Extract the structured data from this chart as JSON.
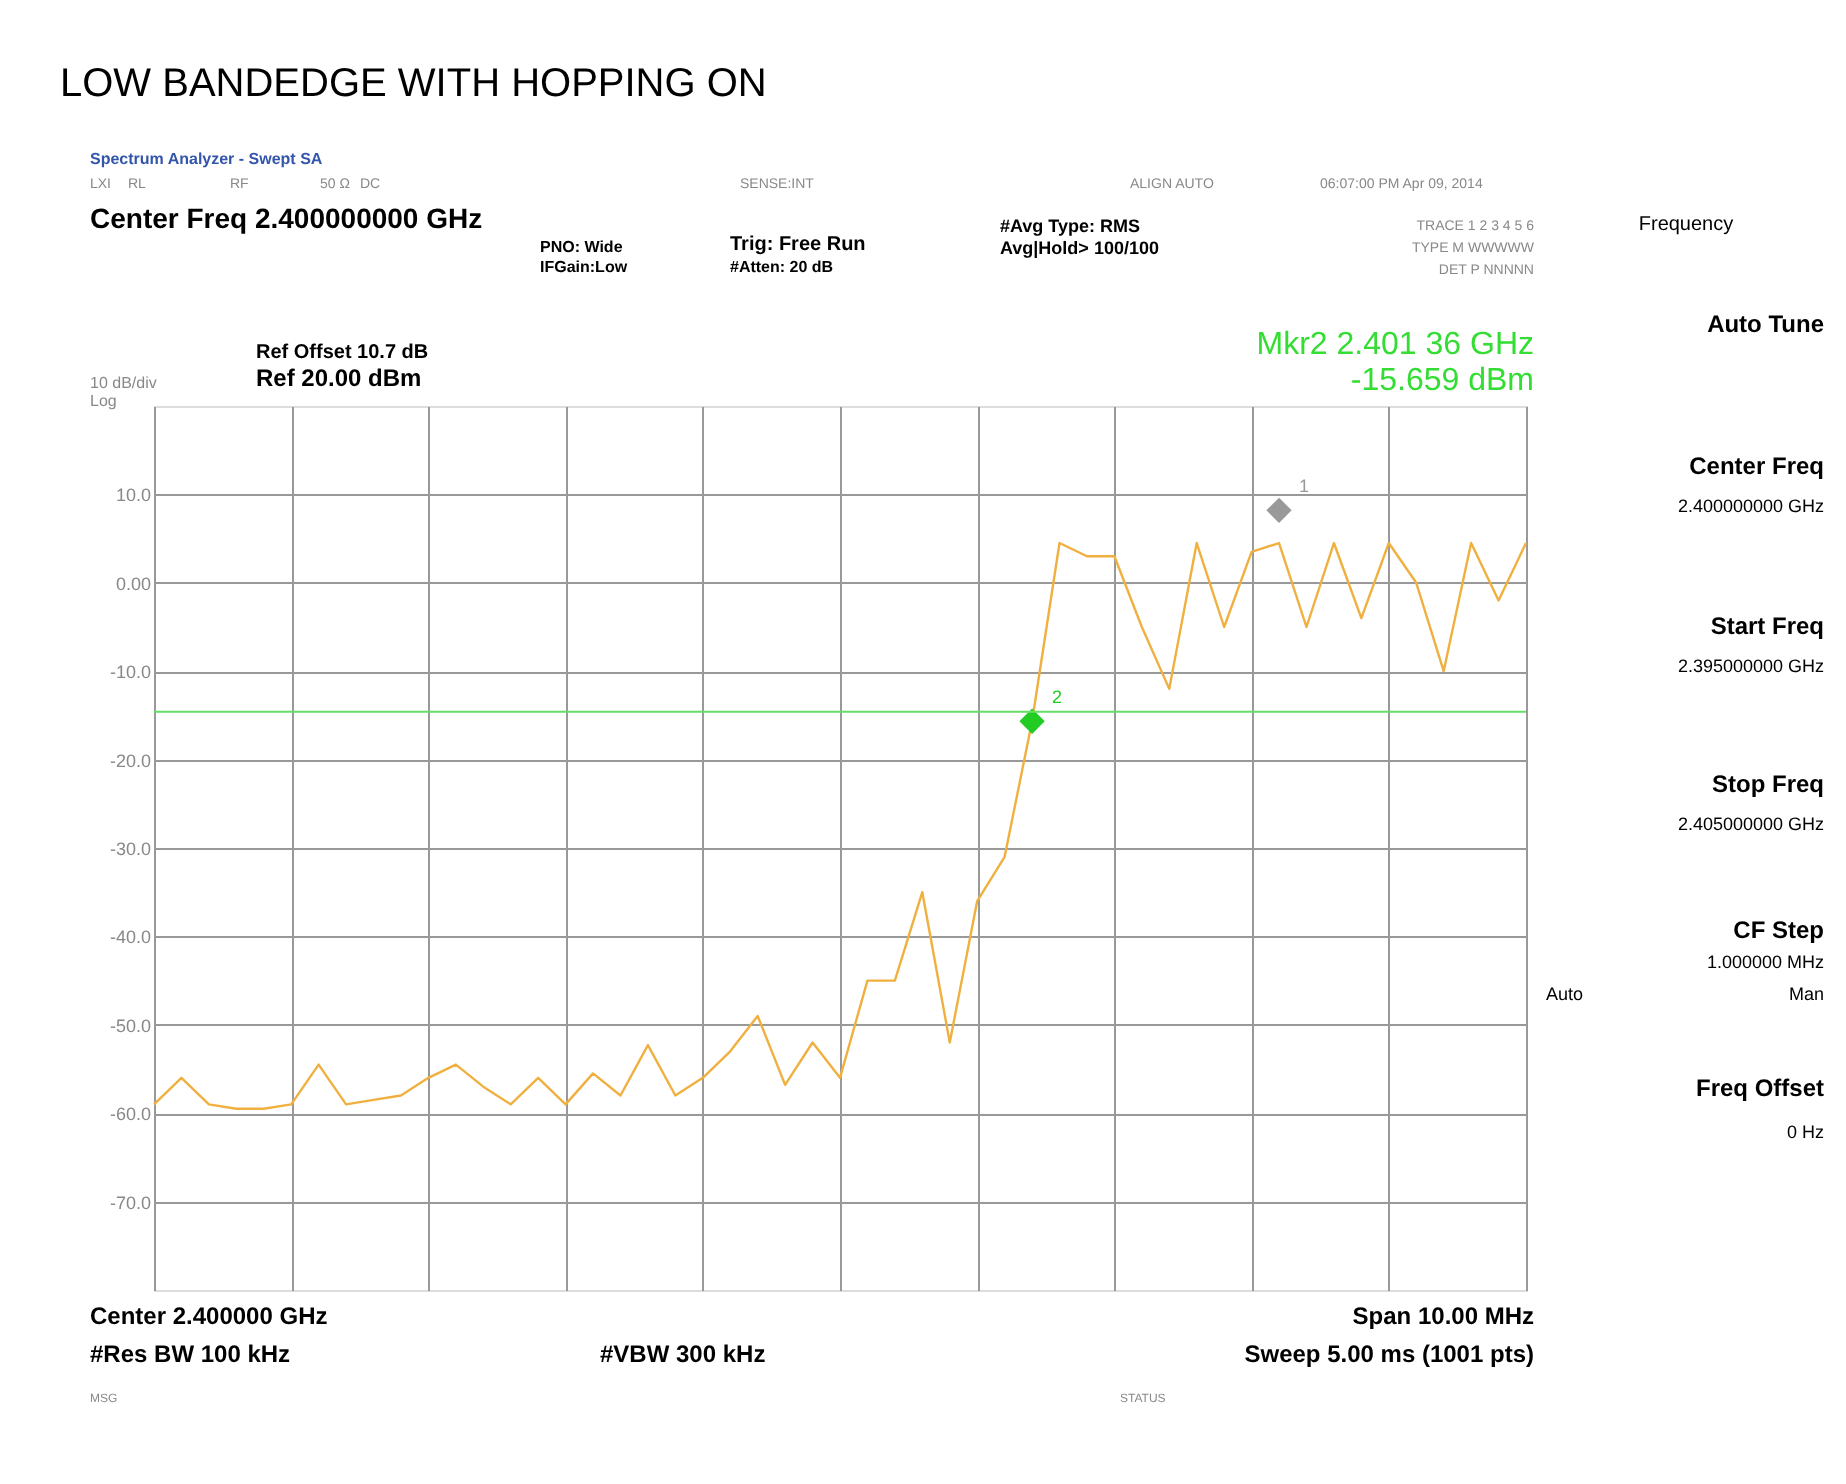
{
  "chart_data": {
    "type": "line",
    "title": "LOW BANDEDGE WITH HOPPING ON",
    "categories": [
      null,
      null,
      null,
      null,
      null,
      null,
      null,
      null,
      null,
      null,
      null,
      null,
      null,
      null,
      null,
      null,
      null,
      null,
      null,
      null,
      null,
      null,
      null,
      null,
      null,
      null,
      null,
      null,
      null,
      null,
      null,
      null,
      null,
      null,
      null,
      null,
      null,
      null,
      null,
      null,
      null,
      null,
      null,
      null,
      null,
      null,
      null,
      null,
      null,
      null,
      null
    ],
    "ylim": [
      -80,
      20
    ],
    "yticks": [
      {
        "value": 10,
        "label": "10.0"
      },
      {
        "value": 0,
        "label": "0.00"
      },
      {
        "value": -10,
        "label": "-10.0"
      },
      {
        "value": -20,
        "label": "-20.0"
      },
      {
        "value": -30,
        "label": "-30.0"
      },
      {
        "value": -40,
        "label": "-40.0"
      },
      {
        "value": -50,
        "label": "-50.0"
      },
      {
        "value": -60,
        "label": "-60.0"
      },
      {
        "value": -70,
        "label": "-70.0"
      }
    ],
    "tick_labels": "y",
    "grid": true,
    "series": [
      {
        "color": "#f0b040",
        "values": [
          -59,
          -56,
          -59,
          -59.5,
          -59.5,
          -59,
          -54.5,
          -59,
          -58.5,
          -58,
          -56,
          -54.5,
          -57,
          -59,
          -56,
          -59,
          -55.5,
          -58,
          -52.3,
          -58,
          -56,
          -53,
          -49,
          -56.8,
          -52,
          -56,
          -45,
          -45,
          -35,
          -52,
          -36,
          -31,
          -15.659,
          4.5,
          3,
          3,
          -5,
          -12,
          4.5,
          -5,
          3.5,
          4.5,
          -5,
          4.5,
          -4,
          4.5,
          0,
          -10,
          4.5,
          -2,
          4.5
        ]
      },
      {
        "type": "scatter",
        "name": "1",
        "color": "#999999",
        "marker": "diamond",
        "values": [
          null,
          null,
          null,
          null,
          null,
          null,
          null,
          null,
          null,
          null,
          null,
          null,
          null,
          null,
          null,
          null,
          null,
          null,
          null,
          null,
          null,
          null,
          null,
          null,
          null,
          null,
          null,
          null,
          null,
          null,
          null,
          null,
          null,
          null,
          null,
          null,
          null,
          null,
          null,
          null,
          null,
          8.2,
          null,
          null,
          null,
          null,
          null,
          null,
          null,
          null,
          null
        ]
      },
      {
        "type": "scatter",
        "name": "2",
        "color": "#22cc22",
        "marker": "diamond",
        "values": [
          null,
          null,
          null,
          null,
          null,
          null,
          null,
          null,
          null,
          null,
          null,
          null,
          null,
          null,
          null,
          null,
          null,
          null,
          null,
          null,
          null,
          null,
          null,
          null,
          null,
          null,
          null,
          null,
          null,
          null,
          null,
          null,
          -15.659,
          null,
          null,
          null,
          null,
          null,
          null,
          null,
          null,
          null,
          null,
          null,
          null,
          null,
          null,
          null,
          null,
          null,
          null
        ]
      }
    ],
    "ref_lines": [
      {
        "axis": "y",
        "value": -14.6,
        "color": "#66dd66"
      }
    ],
    "annotations": [
      "Spectrum Analyzer - Swept SA",
      "LXI",
      "RL",
      "RF",
      "50 Ω",
      "DC",
      "SENSE:INT",
      "ALIGN AUTO",
      "06:07:00 PM Apr 09, 2014",
      "Center Freq 2.400000000 GHz",
      "PNO: Wide",
      "IFGain:Low",
      "Trig: Free Run",
      "#Atten: 20 dB",
      "#Avg Type: RMS",
      "Avg|Hold> 100/100",
      "TRACE 1 2 3 4 5 6",
      "TYPE M WWWWW",
      "DET P NNNNN",
      "Ref Offset 10.7 dB",
      "Ref 20.00 dBm",
      "10 dB/div",
      "Log",
      "Mkr2 2.401 36 GHz",
      "-15.659 dBm",
      "Center 2.400000 GHz",
      "#Res BW 100 kHz",
      "#VBW 300 kHz",
      "Span 10.00 MHz",
      "Sweep  5.00 ms (1001 pts)",
      "MSG",
      "STATUS",
      "Frequency",
      "Auto Tune",
      "Center Freq",
      "2.400000000 GHz",
      "Start Freq",
      "2.395000000 GHz",
      "Stop Freq",
      "2.405000000 GHz",
      "CF Step",
      "1.000000 MHz",
      "Auto",
      "Man",
      "Freq Offset",
      "0 Hz"
    ]
  }
}
